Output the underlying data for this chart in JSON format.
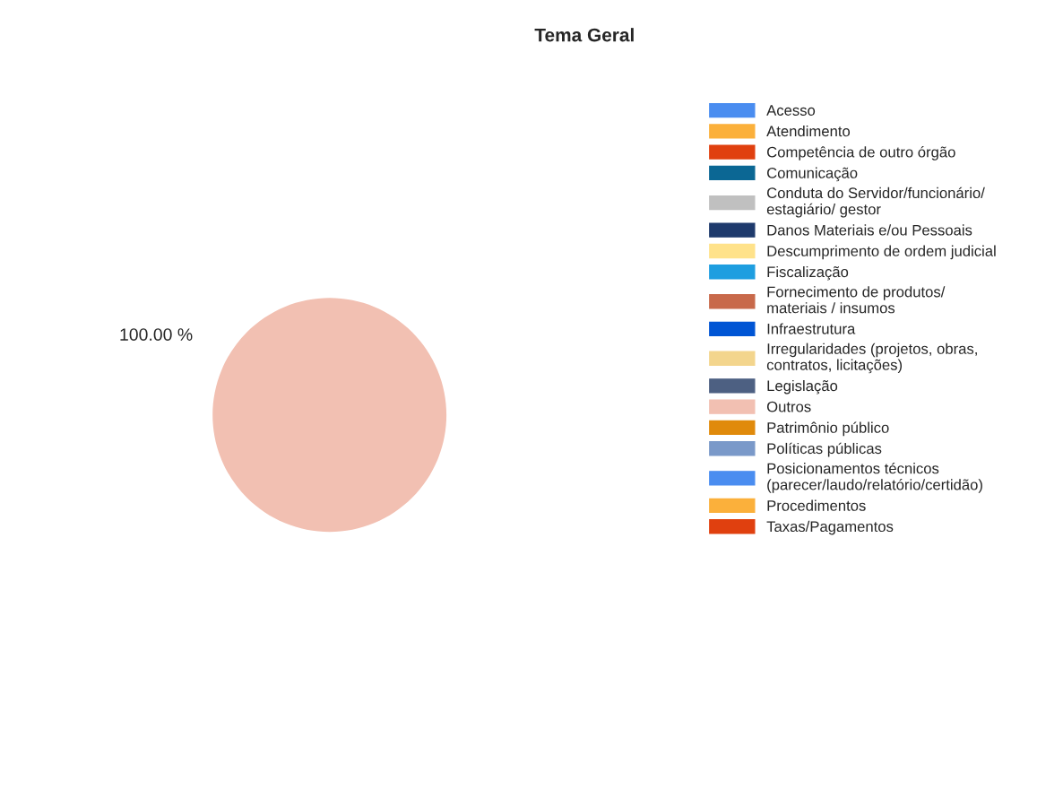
{
  "chart_data": {
    "type": "pie",
    "title": "Tema Geral",
    "categories": [
      "Acesso",
      "Atendimento",
      "Competência de outro órgão",
      "Comunicação",
      "Conduta do Servidor/funcionário/ estagiário/ gestor",
      "Danos Materiais e/ou Pessoais",
      "Descumprimento de ordem judicial",
      "Fiscalização",
      "Fornecimento de produtos/ materiais / insumos",
      "Infraestrutura",
      "Irregularidades (projetos, obras, contratos, licitações)",
      "Legislação",
      "Outros",
      "Patrimônio público",
      "Políticas públicas",
      "Posicionamentos técnicos (parecer/laudo/relatório/certidão)",
      "Procedimentos",
      "Taxas/Pagamentos"
    ],
    "values": [
      0,
      0,
      0,
      0,
      0,
      0,
      0,
      0,
      0,
      0,
      0,
      0,
      100,
      0,
      0,
      0,
      0,
      0
    ],
    "value_labels": [
      null,
      null,
      null,
      null,
      null,
      null,
      null,
      null,
      null,
      null,
      null,
      null,
      "100.00 %",
      null,
      null,
      null,
      null,
      null
    ],
    "colors": [
      "#4a8df0",
      "#fbb03b",
      "#e0400f",
      "#0b6794",
      "#c0c0c0",
      "#1e3a6c",
      "#ffe28a",
      "#1e9ee0",
      "#c8694a",
      "#0055d4",
      "#f3d58d",
      "#4d6082",
      "#f2c0b2",
      "#e08a0b",
      "#7a99c9",
      "#4a8df0",
      "#fbb03b",
      "#e0400f"
    ],
    "legend": "right"
  }
}
